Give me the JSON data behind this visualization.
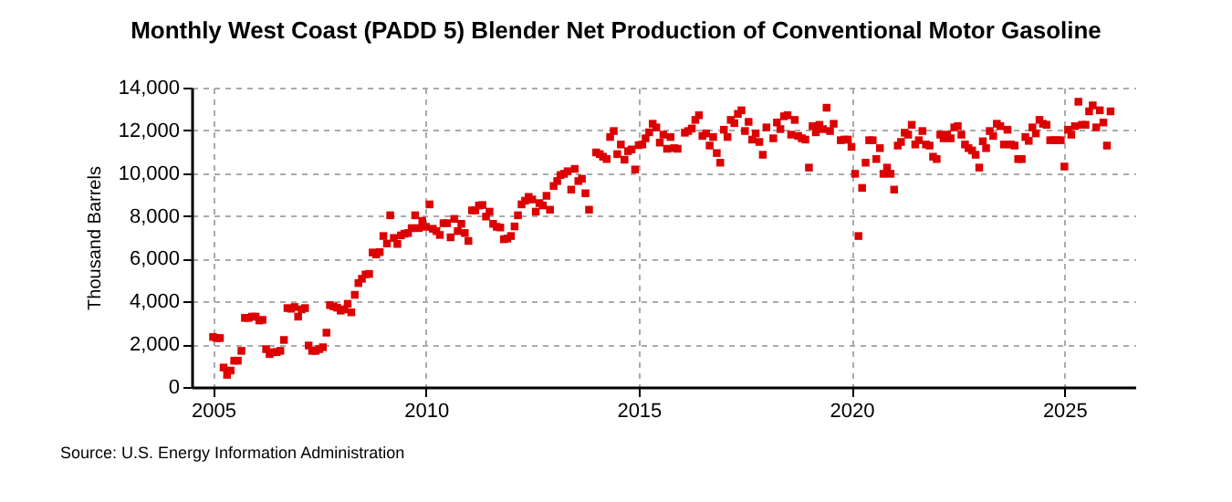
{
  "chart_data": {
    "type": "scatter",
    "title": "Monthly West Coast (PADD 5) Blender Net Production of Conventional Motor Gasoline",
    "ylabel": "Thousand Barrels",
    "annotations": [
      "Source: U.S. Energy Information Administration"
    ],
    "x": [
      "2005-01",
      "2005-02",
      "2005-03",
      "2005-04",
      "2005-05",
      "2005-06",
      "2005-07",
      "2005-08",
      "2005-09",
      "2005-10",
      "2005-11",
      "2005-12",
      "2006-01",
      "2006-02",
      "2006-03",
      "2006-04",
      "2006-05",
      "2006-06",
      "2006-07",
      "2006-08",
      "2006-09",
      "2006-10",
      "2006-11",
      "2006-12",
      "2007-01",
      "2007-02",
      "2007-03",
      "2007-04",
      "2007-05",
      "2007-06",
      "2007-07",
      "2007-08",
      "2007-09",
      "2007-10",
      "2007-11",
      "2007-12",
      "2008-01",
      "2008-02",
      "2008-03",
      "2008-04",
      "2008-05",
      "2008-06",
      "2008-07",
      "2008-08",
      "2008-09",
      "2008-10",
      "2008-11",
      "2008-12",
      "2009-01",
      "2009-02",
      "2009-03",
      "2009-04",
      "2009-05",
      "2009-06",
      "2009-07",
      "2009-08",
      "2009-09",
      "2009-10",
      "2009-11",
      "2009-12",
      "2010-01",
      "2010-02",
      "2010-03",
      "2010-04",
      "2010-05",
      "2010-06",
      "2010-07",
      "2010-08",
      "2010-09",
      "2010-10",
      "2010-11",
      "2010-12",
      "2011-01",
      "2011-02",
      "2011-03",
      "2011-04",
      "2011-05",
      "2011-06",
      "2011-07",
      "2011-08",
      "2011-09",
      "2011-10",
      "2011-11",
      "2011-12",
      "2012-01",
      "2012-02",
      "2012-03",
      "2012-04",
      "2012-05",
      "2012-06",
      "2012-07",
      "2012-08",
      "2012-09",
      "2012-10",
      "2012-11",
      "2012-12",
      "2013-01",
      "2013-02",
      "2013-03",
      "2013-04",
      "2013-05",
      "2013-06",
      "2013-07",
      "2013-08",
      "2013-09",
      "2013-10",
      "2013-11",
      "2014-01",
      "2014-02",
      "2014-03",
      "2014-04",
      "2014-05",
      "2014-06",
      "2014-07",
      "2014-08",
      "2014-09",
      "2014-10",
      "2014-11",
      "2014-12",
      "2015-01",
      "2015-02",
      "2015-03",
      "2015-04",
      "2015-05",
      "2015-06",
      "2015-07",
      "2015-08",
      "2015-09",
      "2015-10",
      "2015-11",
      "2015-12",
      "2016-02",
      "2016-03",
      "2016-04",
      "2016-05",
      "2016-06",
      "2016-07",
      "2016-08",
      "2016-09",
      "2016-10",
      "2016-11",
      "2016-12",
      "2017-01",
      "2017-02",
      "2017-03",
      "2017-04",
      "2017-05",
      "2017-06",
      "2017-07",
      "2017-08",
      "2017-09",
      "2017-10",
      "2017-11",
      "2017-12",
      "2018-01",
      "2018-03",
      "2018-04",
      "2018-05",
      "2018-06",
      "2018-07",
      "2018-08",
      "2018-09",
      "2018-10",
      "2018-11",
      "2018-12",
      "2019-01",
      "2019-02",
      "2019-03",
      "2019-04",
      "2019-05",
      "2019-06",
      "2019-07",
      "2019-08",
      "2019-10",
      "2019-11",
      "2019-12",
      "2020-01",
      "2020-02",
      "2020-03",
      "2020-04",
      "2020-05",
      "2020-06",
      "2020-07",
      "2020-08",
      "2020-09",
      "2020-10",
      "2020-11",
      "2020-12",
      "2021-01",
      "2021-02",
      "2021-03",
      "2021-04",
      "2021-05",
      "2021-06",
      "2021-07",
      "2021-08",
      "2021-09",
      "2021-10",
      "2021-11",
      "2021-12",
      "2022-01",
      "2022-02",
      "2022-03",
      "2022-04",
      "2022-05",
      "2022-06",
      "2022-07",
      "2022-08",
      "2022-09",
      "2022-10",
      "2022-11",
      "2022-12",
      "2023-01",
      "2023-02",
      "2023-03",
      "2023-04",
      "2023-05",
      "2023-06",
      "2023-07",
      "2023-08",
      "2023-09",
      "2023-10",
      "2023-11",
      "2023-12",
      "2024-01",
      "2024-02",
      "2024-03",
      "2024-04",
      "2024-05",
      "2024-06",
      "2024-07",
      "2024-08",
      "2024-09",
      "2024-10",
      "2024-11",
      "2024-12",
      "2025-01",
      "2025-02",
      "2025-03",
      "2025-04",
      "2025-05",
      "2025-06",
      "2025-07",
      "2025-08",
      "2025-09",
      "2025-10",
      "2025-11",
      "2025-12",
      "2026-01",
      "2026-02"
    ],
    "series": [
      {
        "color": "#dd0000",
        "values": [
          2340,
          2290,
          2290,
          910,
          570,
          770,
          1230,
          1230,
          1690,
          3230,
          3230,
          3290,
          3290,
          3110,
          3140,
          1770,
          1540,
          1630,
          1630,
          1690,
          2200,
          3690,
          3660,
          3740,
          3290,
          3630,
          3690,
          1940,
          1690,
          1690,
          1770,
          1860,
          2540,
          3830,
          3770,
          3710,
          3570,
          3630,
          3890,
          3490,
          4310,
          4860,
          5060,
          5260,
          5290,
          6290,
          6200,
          6310,
          7060,
          6710,
          8030,
          6970,
          6690,
          7090,
          7170,
          7200,
          7430,
          8030,
          7430,
          7770,
          7490,
          8540,
          7400,
          7290,
          7110,
          7660,
          7660,
          7000,
          7860,
          7290,
          7630,
          7200,
          6830,
          8260,
          8260,
          8490,
          8510,
          7970,
          8200,
          7630,
          7490,
          7460,
          6910,
          6940,
          7060,
          7510,
          8030,
          8540,
          8710,
          8890,
          8770,
          8200,
          8600,
          8490,
          8940,
          8290,
          9400,
          9630,
          9910,
          9970,
          10090,
          9230,
          10200,
          9630,
          9740,
          9060,
          8290,
          10970,
          10890,
          10770,
          10660,
          11690,
          11970,
          10890,
          11340,
          10630,
          11030,
          11110,
          10170,
          11310,
          11340,
          11630,
          11910,
          12310,
          12140,
          11430,
          11800,
          11140,
          11690,
          11170,
          11140,
          11890,
          11970,
          12090,
          12490,
          12710,
          11740,
          11860,
          11290,
          11690,
          10940,
          10490,
          12030,
          11690,
          12490,
          12340,
          12770,
          12940,
          11970,
          12400,
          11570,
          11860,
          11460,
          10860,
          12140,
          11630,
          12370,
          12060,
          12660,
          12710,
          11800,
          12490,
          11740,
          11630,
          11570,
          10260,
          12200,
          11910,
          12260,
          12060,
          13060,
          11970,
          12310,
          11540,
          11570,
          11570,
          11230,
          9970,
          7060,
          9310,
          10490,
          11540,
          11540,
          10660,
          11170,
          9970,
          10260,
          9970,
          9230,
          11290,
          11460,
          11890,
          11800,
          12260,
          11340,
          11540,
          11970,
          11340,
          11290,
          10770,
          10660,
          11800,
          11630,
          11800,
          11630,
          12140,
          12200,
          11800,
          11340,
          11170,
          11060,
          10860,
          10260,
          11490,
          11170,
          11970,
          11740,
          12310,
          12200,
          11340,
          12030,
          11340,
          11290,
          10660,
          10660,
          11690,
          11510,
          12140,
          11860,
          12490,
          12310,
          12260,
          11540,
          11540,
          11540,
          11540,
          10310,
          12030,
          11800,
          12200,
          13340,
          12260,
          12260,
          12890,
          13170,
          12140,
          12940,
          12370,
          11290,
          12890
        ]
      }
    ],
    "xlim": [
      "2004-07",
      "2026-09"
    ],
    "xticks": [
      "2005",
      "2010",
      "2015",
      "2020",
      "2025"
    ],
    "ylim": [
      0,
      14000
    ],
    "yticks": [
      0,
      {
        "value": 2000,
        "label": "2,000"
      },
      {
        "value": 4000,
        "label": "4,000"
      },
      {
        "value": 6000,
        "label": "6,000"
      },
      {
        "value": 8000,
        "label": "8,000"
      },
      {
        "value": 10000,
        "label": "10,000"
      },
      {
        "value": 12000,
        "label": "12,000"
      },
      {
        "value": 14000,
        "label": "14,000"
      }
    ],
    "grid": true,
    "marker": "square"
  }
}
